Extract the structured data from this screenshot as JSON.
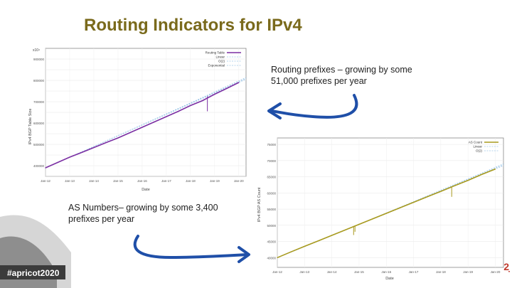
{
  "slide": {
    "title": "Routing Indicators for IPv4",
    "note_prefixes": "Routing prefixes – growing by some 51,000 prefixes per year",
    "note_asns": "AS Numbers– growing by some 3,400 prefixes per year",
    "hashtag": "#apricot2020",
    "badge": "2̣"
  },
  "colors": {
    "title": "#7a6a1c",
    "arrow": "#1f4fa8",
    "chart1_series": "#7b2fa3",
    "chart2_series": "#a89a1e",
    "fit_line": "#9ec7e8"
  },
  "chart_data": [
    {
      "type": "line",
      "title": "",
      "xlabel": "Date",
      "ylabel": "IPv4 BGP Table Size",
      "x_ticks": [
        "Jan-12",
        "Jan-13",
        "Jan-14",
        "Jan-15",
        "Jan-16",
        "Jan-17",
        "Jan-18",
        "Jan-19",
        "Jan-20"
      ],
      "y_ticks": [
        350000,
        400000,
        450000,
        500000,
        550000,
        600000,
        650000,
        700000,
        750000,
        800000,
        850000,
        900000
      ],
      "y_tick_labels": [
        "",
        "400000",
        "",
        "500000",
        "",
        "600000",
        "",
        "700000",
        "",
        "800000",
        "",
        "900000"
      ],
      "y_multiplier_label": "x10⁴",
      "ylim": [
        350000,
        950000
      ],
      "legend": [
        "Routing Table",
        "Linear",
        "O(2)",
        "Exponential"
      ],
      "legend_position": "top-right",
      "series": [
        {
          "name": "Routing Table",
          "x": [
            2012.0,
            2012.5,
            2013.0,
            2013.5,
            2014.0,
            2014.5,
            2015.0,
            2015.5,
            2016.0,
            2016.5,
            2017.0,
            2017.5,
            2018.0,
            2018.5,
            2019.0,
            2019.5,
            2020.0
          ],
          "values": [
            390000,
            415000,
            440000,
            462000,
            485000,
            508000,
            530000,
            555000,
            580000,
            605000,
            630000,
            655000,
            682000,
            705000,
            735000,
            762000,
            790000
          ]
        }
      ],
      "outliers": [
        {
          "x": 2018.7,
          "value": 655000
        }
      ]
    },
    {
      "type": "line",
      "title": "",
      "xlabel": "Date",
      "ylabel": "IPv4 BGP AS Count",
      "x_ticks": [
        "Jan-12",
        "Jan-13",
        "Jan-14",
        "Jan-15",
        "Jan-16",
        "Jan-17",
        "Jan-18",
        "Jan-19",
        "Jan-20"
      ],
      "y_ticks": [
        40000,
        45000,
        50000,
        55000,
        60000,
        65000,
        70000,
        75000
      ],
      "y_tick_labels": [
        "40000",
        "45000",
        "50000",
        "55000",
        "60000",
        "65000",
        "70000",
        "75000"
      ],
      "ylim": [
        37000,
        77000
      ],
      "legend": [
        "AS Count",
        "Linear",
        "O(2)"
      ],
      "legend_position": "top-right",
      "series": [
        {
          "name": "AS Count",
          "x": [
            2012.0,
            2012.5,
            2013.0,
            2013.5,
            2014.0,
            2014.5,
            2015.0,
            2015.5,
            2016.0,
            2016.5,
            2017.0,
            2017.5,
            2018.0,
            2018.5,
            2019.0,
            2019.5,
            2020.0
          ],
          "values": [
            40000,
            41800,
            43500,
            45200,
            46900,
            48600,
            50300,
            52000,
            53700,
            55400,
            57100,
            58800,
            60500,
            62200,
            63900,
            65700,
            67400
          ]
        }
      ],
      "outliers": [
        {
          "x": 2014.8,
          "value": 47000
        },
        {
          "x": 2014.85,
          "value": 48000
        },
        {
          "x": 2018.4,
          "value": 58800
        }
      ]
    }
  ]
}
